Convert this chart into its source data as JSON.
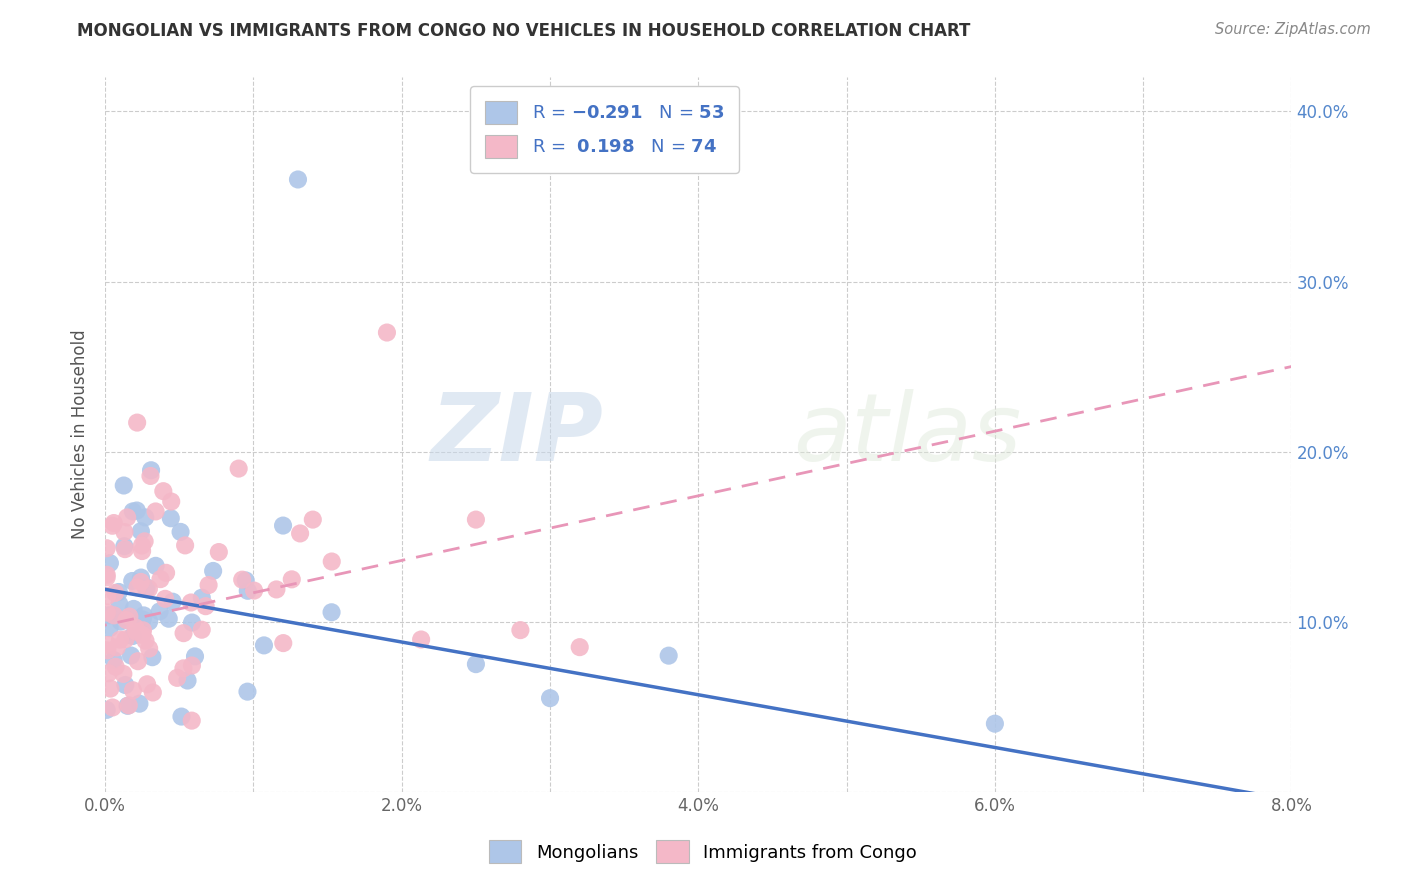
{
  "title": "MONGOLIAN VS IMMIGRANTS FROM CONGO NO VEHICLES IN HOUSEHOLD CORRELATION CHART",
  "source": "Source: ZipAtlas.com",
  "ylabel": "No Vehicles in Household",
  "xlim": [
    0.0,
    0.08
  ],
  "ylim": [
    0.0,
    0.42
  ],
  "mongolian_color": "#aec6e8",
  "congo_color": "#f4b8c8",
  "mongolian_line_color": "#4472c4",
  "congo_line_color": "#e896b8",
  "R_mongolian": -0.291,
  "N_mongolian": 53,
  "R_congo": 0.198,
  "N_congo": 74,
  "legend_label_mongolian": "Mongolians",
  "legend_label_congo": "Immigrants from Congo",
  "background_color": "#ffffff",
  "watermark_ZIP": "ZIP",
  "watermark_atlas": "atlas"
}
